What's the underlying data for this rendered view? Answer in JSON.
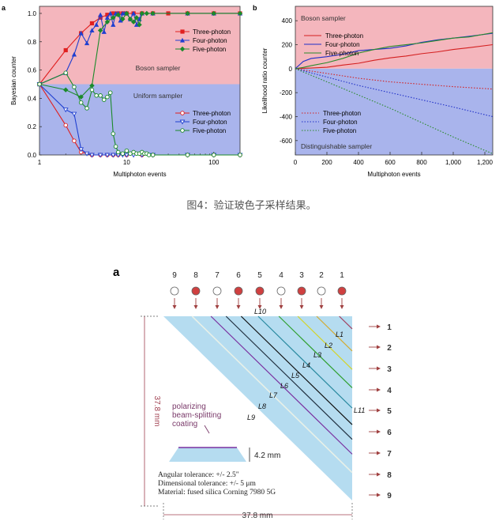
{
  "caption": "图4：验证玻色子采样结果。",
  "chart_data": [
    {
      "panel": "a",
      "type": "line",
      "xlabel": "Multiphoton events",
      "ylabel": "Bayesian counter",
      "xscale": "log",
      "xlim": [
        1,
        200
      ],
      "ylim": [
        0,
        1.05
      ],
      "xticks": [
        "1",
        "10",
        "100"
      ],
      "yticks": [
        "0.0",
        "0.2",
        "0.4",
        "0.6",
        "0.8",
        "1.0"
      ],
      "regions": [
        {
          "label": "Boson sampler",
          "range": [
            0.5,
            1.05
          ],
          "color": "#f4b6bd"
        },
        {
          "label": "Uniform sampler",
          "range": [
            0,
            0.5
          ],
          "color": "#a9b4ec"
        }
      ],
      "legend_top": "top-right",
      "legend_bottom": "bottom-right",
      "series": [
        {
          "name": "Three-photon",
          "color": "#e02020",
          "marker": "square-filled",
          "x": [
            1,
            2,
            3,
            4,
            5,
            6,
            7,
            8,
            9,
            10,
            12,
            15,
            20,
            30,
            50,
            100,
            200
          ],
          "y": [
            0.5,
            0.74,
            0.86,
            0.93,
            0.97,
            0.99,
            1,
            1,
            1,
            1,
            1,
            1,
            1,
            1,
            1,
            1,
            1
          ]
        },
        {
          "name": "Four-photon",
          "color": "#1f3fd0",
          "marker": "triangle-filled",
          "x": [
            1,
            2,
            2.5,
            3,
            3.5,
            4,
            4.5,
            5,
            5.5,
            6,
            6.5,
            7,
            7.5,
            8,
            8.5,
            9,
            9.5,
            10,
            11,
            12,
            13,
            14,
            15,
            20,
            50,
            100,
            200
          ],
          "y": [
            0.5,
            0.58,
            0.71,
            0.86,
            0.79,
            0.88,
            0.92,
            0.99,
            0.87,
            0.97,
            1,
            0.92,
            1,
            1,
            0.95,
            1,
            1,
            1,
            0.96,
            1,
            0.92,
            0.96,
            1,
            1,
            1,
            1,
            1
          ]
        },
        {
          "name": "Five-photon",
          "color": "#1b8a2a",
          "marker": "diamond-filled",
          "x": [
            1,
            2,
            3,
            4,
            5,
            6,
            7,
            8,
            9,
            10,
            11,
            12,
            13,
            14,
            15,
            17,
            20,
            50,
            100,
            200
          ],
          "y": [
            0.5,
            0.46,
            0.41,
            0.49,
            0.88,
            0.94,
            0.97,
            0.99,
            0.96,
            1,
            0.96,
            0.94,
            0.97,
            0.92,
            1,
            1,
            1,
            1,
            1,
            1
          ]
        },
        {
          "name": "Three-photon",
          "color": "#e02020",
          "marker": "circle-open",
          "x": [
            1,
            2,
            2.5,
            3,
            4,
            5,
            6,
            7,
            8,
            10,
            15,
            20,
            50,
            100,
            200
          ],
          "y": [
            0.5,
            0.21,
            0.1,
            0.02,
            0,
            0,
            0,
            0,
            0,
            0,
            0,
            0,
            0,
            0,
            0
          ]
        },
        {
          "name": "Four-photon",
          "color": "#1f3fd0",
          "marker": "triangle-down-open",
          "x": [
            1,
            2,
            2.5,
            3,
            3.5,
            4,
            5,
            6,
            7,
            8,
            9,
            10,
            12,
            15,
            20,
            50,
            100,
            200
          ],
          "y": [
            0.5,
            0.32,
            0.29,
            0.04,
            0.01,
            0,
            0,
            0,
            0,
            0,
            0,
            0,
            0,
            0,
            0,
            0,
            0,
            0
          ]
        },
        {
          "name": "Five-photon",
          "color": "#1b8a2a",
          "marker": "circle-open",
          "x": [
            1,
            2,
            2.5,
            3,
            3.5,
            4,
            4.5,
            5,
            5.5,
            6,
            6.5,
            7,
            7.5,
            8,
            9,
            10,
            11,
            12,
            13,
            14,
            15,
            16,
            17,
            18,
            20,
            50,
            100,
            200
          ],
          "y": [
            0.5,
            0.58,
            0.48,
            0.37,
            0.33,
            0.46,
            0.42,
            0.42,
            0.39,
            0.41,
            0.44,
            0.15,
            0.06,
            0.02,
            0.01,
            0.03,
            0.01,
            0.02,
            0.01,
            0.01,
            0.02,
            0.01,
            0.01,
            0,
            0,
            0,
            0,
            0
          ]
        }
      ]
    },
    {
      "panel": "b",
      "type": "line",
      "xlabel": "Multiphoton events",
      "ylabel": "Likelihood ratio counter",
      "xlim": [
        0,
        1250
      ],
      "ylim": [
        -720,
        520
      ],
      "xticks": [
        "0",
        "200",
        "400",
        "600",
        "800",
        "1,000",
        "1,200"
      ],
      "yticks": [
        "-600",
        "-400",
        "-200",
        "0",
        "200",
        "400"
      ],
      "regions": [
        {
          "label": "Boson sampler",
          "range": [
            0,
            520
          ],
          "color": "#f4b6bd"
        },
        {
          "label": "Distinguishable sampler",
          "range": [
            -720,
            0
          ],
          "color": "#a9b4ec"
        }
      ],
      "legend_top": "top-center",
      "legend_bottom": "center",
      "series": [
        {
          "name": "Three-photon",
          "color": "#d42020",
          "style": "solid",
          "x": [
            0,
            100,
            200,
            300,
            400,
            500,
            600,
            700,
            800,
            900,
            1000,
            1100,
            1250
          ],
          "y": [
            0,
            5,
            12,
            30,
            45,
            70,
            90,
            105,
            125,
            140,
            160,
            175,
            200
          ]
        },
        {
          "name": "Four-photon",
          "color": "#2030c8",
          "style": "solid",
          "x": [
            0,
            50,
            100,
            200,
            300,
            400,
            500,
            600,
            700,
            800,
            900,
            1000,
            1100,
            1250
          ],
          "y": [
            0,
            60,
            85,
            100,
            120,
            150,
            160,
            170,
            190,
            220,
            240,
            255,
            270,
            295
          ]
        },
        {
          "name": "Five-photon",
          "color": "#2a8a2a",
          "style": "solid",
          "x": [
            0,
            50,
            100,
            200,
            300,
            400,
            500,
            600,
            700,
            800,
            900,
            1000,
            1100,
            1250
          ],
          "y": [
            0,
            10,
            25,
            50,
            85,
            130,
            160,
            185,
            200,
            215,
            235,
            255,
            265,
            300
          ]
        },
        {
          "name": "Three-photon",
          "color": "#d42020",
          "style": "dotted",
          "x": [
            0,
            200,
            400,
            600,
            800,
            1000,
            1250
          ],
          "y": [
            0,
            -40,
            -80,
            -110,
            -130,
            -150,
            -170
          ]
        },
        {
          "name": "Four-photon",
          "color": "#2030c8",
          "style": "dotted",
          "x": [
            0,
            200,
            400,
            600,
            800,
            1000,
            1250
          ],
          "y": [
            0,
            -70,
            -140,
            -200,
            -260,
            -320,
            -400
          ]
        },
        {
          "name": "Five-photon",
          "color": "#2a8a2a",
          "style": "dotted",
          "x": [
            0,
            200,
            400,
            600,
            800,
            1000,
            1250
          ],
          "y": [
            0,
            -110,
            -220,
            -330,
            -450,
            -570,
            -710
          ]
        }
      ]
    }
  ],
  "diagram": {
    "panel_label": "a",
    "input_ports": [
      {
        "label": "9",
        "filled": false
      },
      {
        "label": "8",
        "filled": true
      },
      {
        "label": "7",
        "filled": false
      },
      {
        "label": "6",
        "filled": true
      },
      {
        "label": "5",
        "filled": true
      },
      {
        "label": "4",
        "filled": false
      },
      {
        "label": "3",
        "filled": true
      },
      {
        "label": "2",
        "filled": false
      },
      {
        "label": "1",
        "filled": true
      }
    ],
    "output_ports": [
      "1",
      "2",
      "3",
      "4",
      "5",
      "6",
      "7",
      "8",
      "9"
    ],
    "layers": [
      "L1",
      "L2",
      "L3",
      "L4",
      "L5",
      "L6",
      "L7",
      "L8",
      "L9",
      "L10",
      "L11"
    ],
    "layer_colors": [
      "#a04060",
      "#d4aa30",
      "#d4d428",
      "#30a030",
      "#2a8aa0",
      "#101010",
      "#203040",
      "#7a30a0",
      "#e8f0e8"
    ],
    "height_dim": "37.8 mm",
    "width_dim": "37.8 mm",
    "coating_label": [
      "polarizing",
      "beam-splitting",
      "coating"
    ],
    "thickness_dim": "4.2 mm",
    "specs": [
      "Angular tolerance: +/- 2.5\"",
      "Dimensional tolerance: +/- 5 μm",
      "Material: fused silica Corning 7980 5G"
    ]
  }
}
